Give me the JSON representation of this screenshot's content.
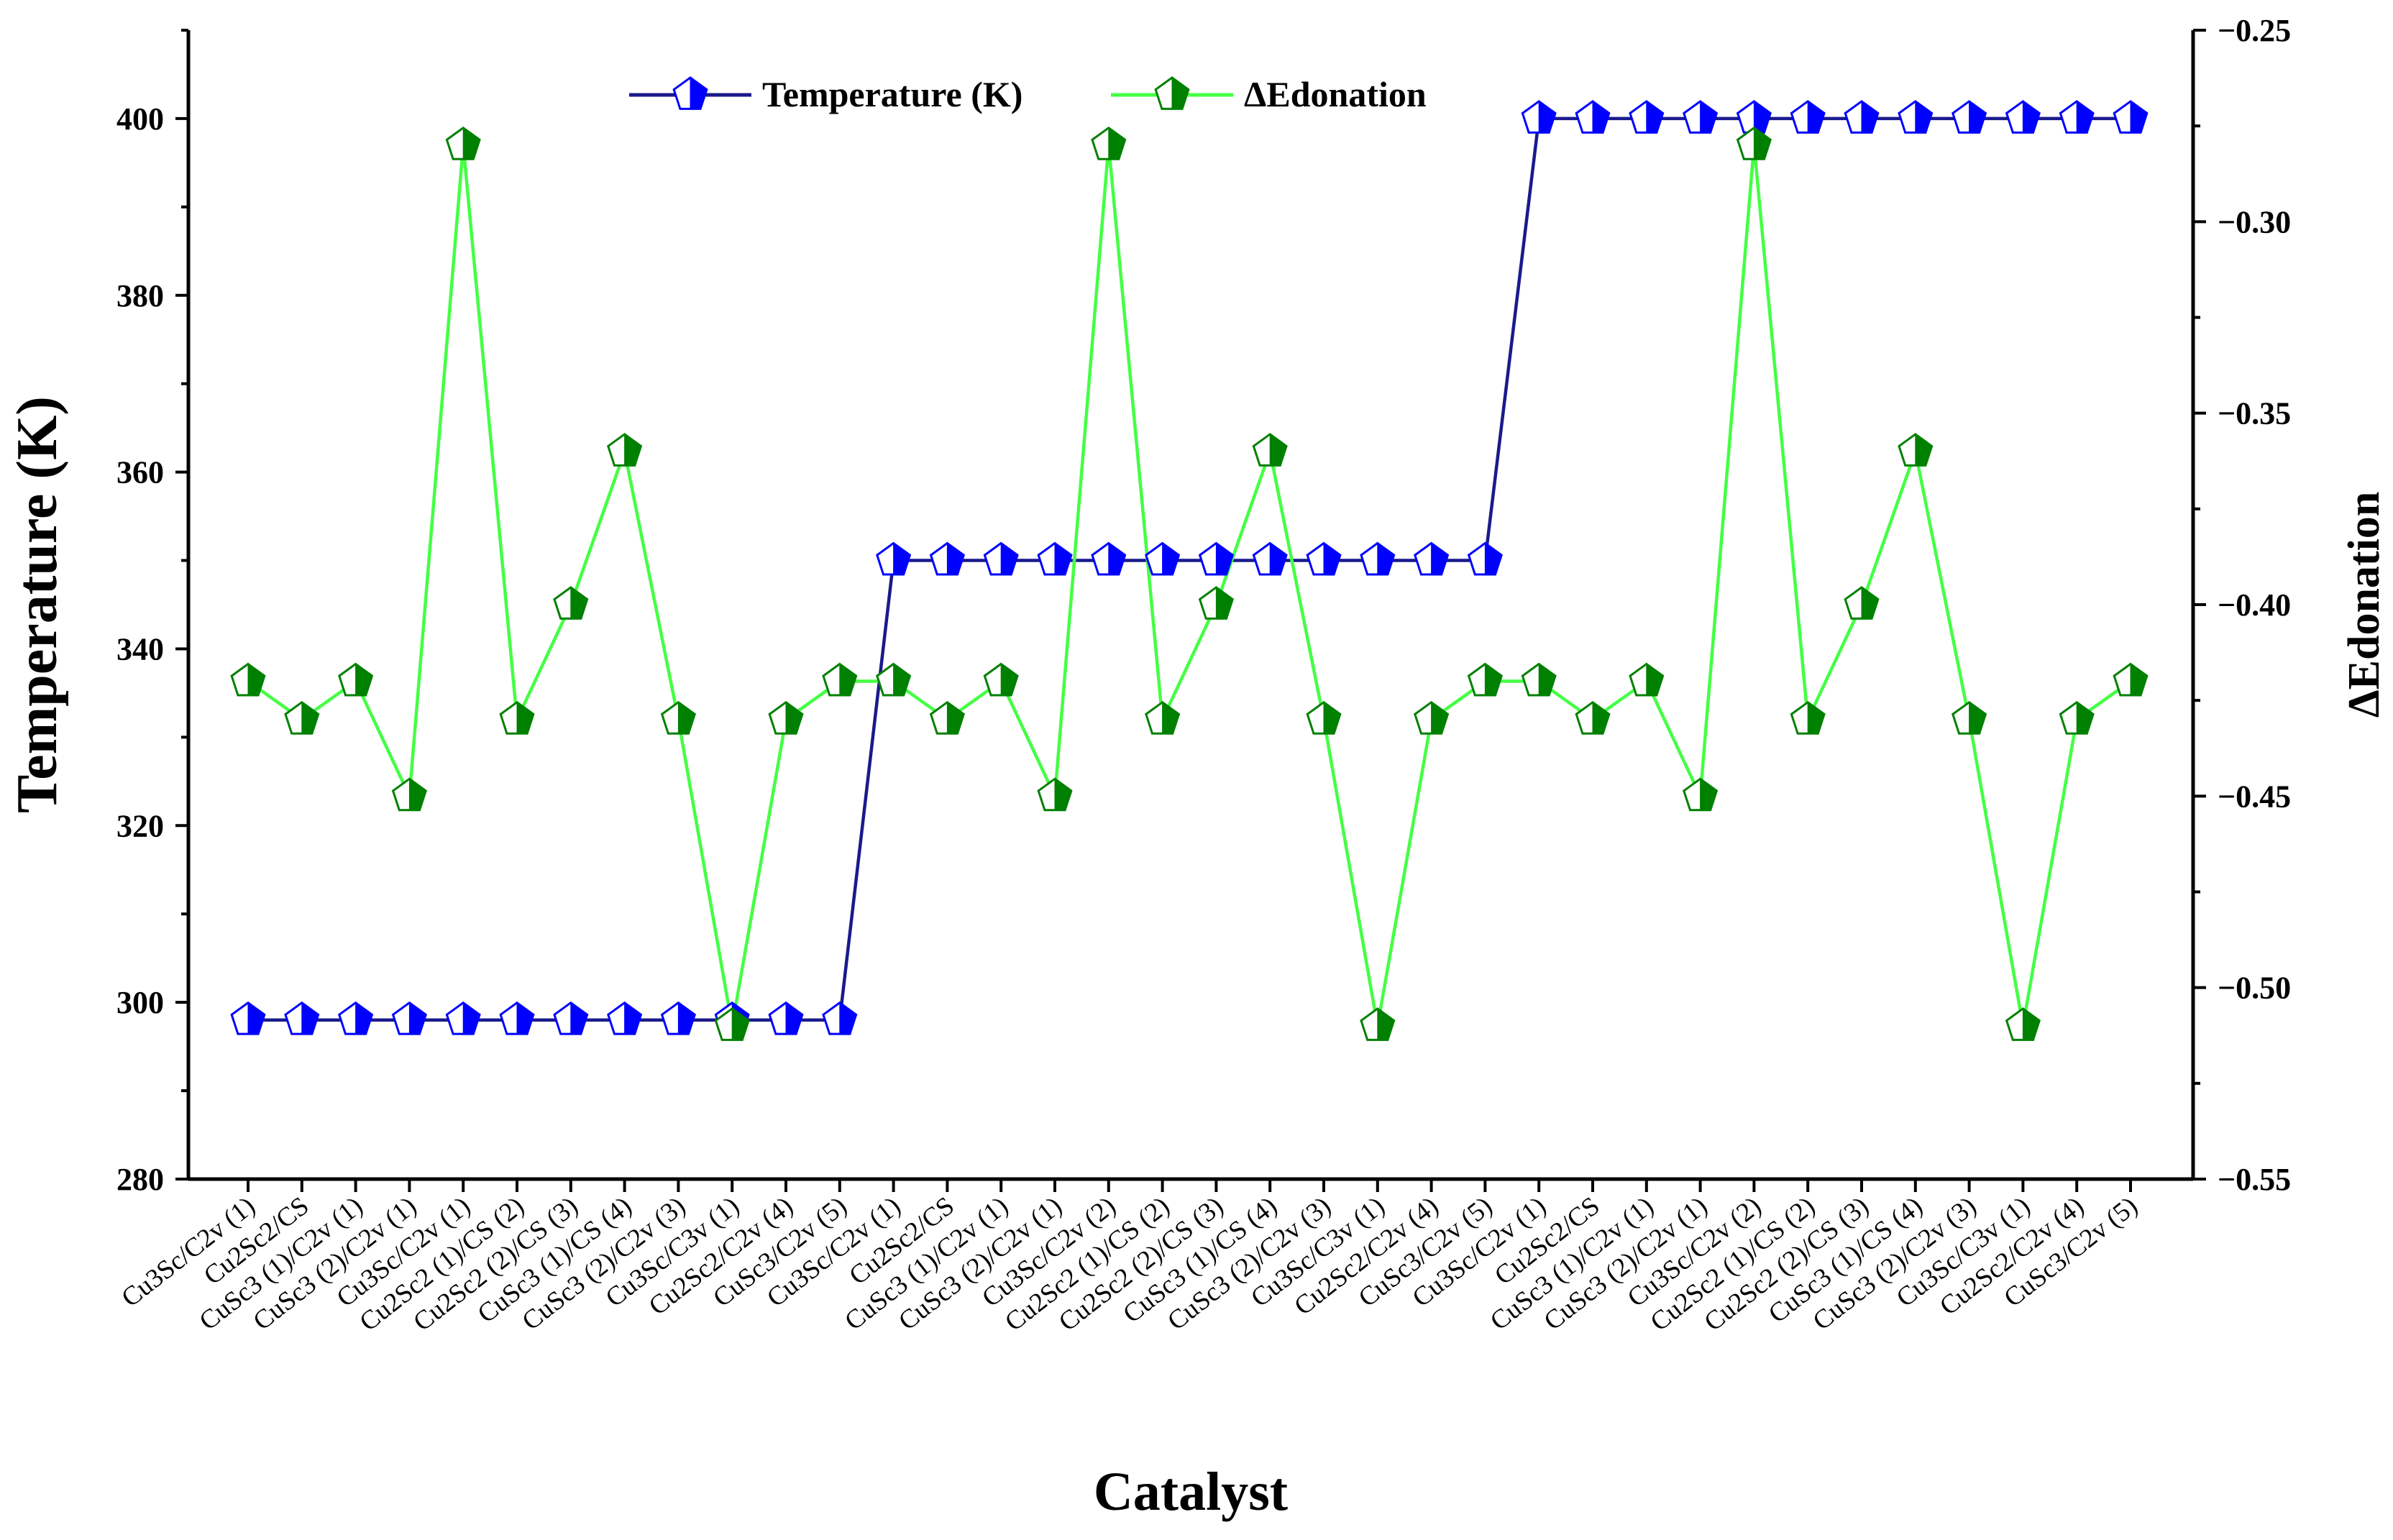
{
  "chart_data": {
    "type": "line",
    "xlabel": "Catalyst",
    "ylabel_left": "Temperature (K)",
    "ylabel_right": "ΔEdonation",
    "ylim_left": [
      280,
      410
    ],
    "ylim_right": [
      -0.55,
      -0.25
    ],
    "yticks_left": [
      "280",
      "300",
      "320",
      "340",
      "360",
      "380",
      "400"
    ],
    "yticks_right": [
      "−0.55",
      "−0.50",
      "−0.45",
      "−0.40",
      "−0.35",
      "−0.30",
      "−0.25"
    ],
    "legend_position": "top-center",
    "categories": [
      "Cu3Sc/C2v (1)",
      "Cu2Sc2/CS",
      "CuSc3 (1)/C2v (1)",
      "CuSc3 (2)/C2v (1)",
      "Cu3Sc/C2v (1)",
      "Cu2Sc2 (1)/CS (2)",
      "Cu2Sc2 (2)/CS (3)",
      "CuSc3 (1)/CS (4)",
      "CuSc3 (2)/C2v (3)",
      "Cu3Sc/C3v (1)",
      "Cu2Sc2/C2v (4)",
      "CuSc3/C2v (5)",
      "Cu3Sc/C2v (1)",
      "Cu2Sc2/CS",
      "CuSc3 (1)/C2v (1)",
      "CuSc3 (2)/C2v (1)",
      "Cu3Sc/C2v (2)",
      "Cu2Sc2 (1)/CS (2)",
      "Cu2Sc2 (2)/CS (3)",
      "CuSc3 (1)/CS (4)",
      "CuSc3 (2)/C2v (3)",
      "Cu3Sc/C3v (1)",
      "Cu2Sc2/C2v (4)",
      "CuSc3/C2v (5)",
      "Cu3Sc/C2v (1)",
      "Cu2Sc2/CS",
      "CuSc3 (1)/C2v (1)",
      "CuSc3 (2)/C2v (1)",
      "Cu3Sc/C2v (2)",
      "Cu2Sc2 (1)/CS (2)",
      "Cu2Sc2 (2)/CS (3)",
      "CuSc3 (1)/CS (4)",
      "CuSc3 (2)/C2v (3)",
      "Cu3Sc/C3v (1)",
      "Cu2Sc2/C2v (4)",
      "CuSc3/C2v (5)"
    ],
    "series": [
      {
        "name": "Temperature (K)",
        "axis": "left",
        "color": "#1a1a8c",
        "marker_color": "#0000ff",
        "values": [
          298,
          298,
          298,
          298,
          298,
          298,
          298,
          298,
          298,
          298,
          298,
          298,
          350,
          350,
          350,
          350,
          350,
          350,
          350,
          350,
          350,
          350,
          350,
          350,
          400,
          400,
          400,
          400,
          400,
          400,
          400,
          400,
          400,
          400,
          400,
          400
        ]
      },
      {
        "name": "ΔEdonation",
        "axis": "right",
        "color": "#44ff44",
        "marker_color": "#008000",
        "values": [
          -0.42,
          -0.43,
          -0.42,
          -0.45,
          -0.28,
          -0.43,
          -0.4,
          -0.36,
          -0.43,
          -0.51,
          -0.43,
          -0.42,
          -0.42,
          -0.43,
          -0.42,
          -0.45,
          -0.28,
          -0.43,
          -0.4,
          -0.36,
          -0.43,
          -0.51,
          -0.43,
          -0.42,
          -0.42,
          -0.43,
          -0.42,
          -0.45,
          -0.28,
          -0.43,
          -0.4,
          -0.36,
          -0.43,
          -0.51,
          -0.43,
          -0.42
        ]
      }
    ]
  }
}
